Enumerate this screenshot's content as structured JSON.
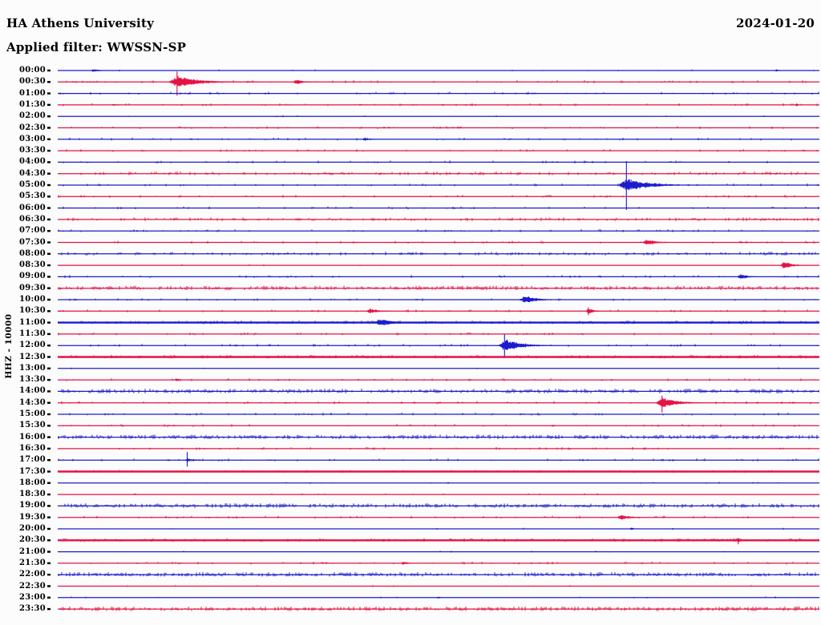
{
  "header": {
    "station_title": "HA Athens University",
    "date": "2024-01-20",
    "filter_label": "Applied filter: WWSSN-SP"
  },
  "axis": {
    "channel_label": "HHZ - 10000",
    "row_duration_min": 30,
    "time_range": "00:00 - 24:00"
  },
  "colors": {
    "trace_blue": "#1c1ccd",
    "trace_red": "#e51245",
    "tick_black": "#000000",
    "text": "#000000",
    "background": "#fcfcfc"
  },
  "chart_data": {
    "type": "helicorder",
    "description": "24-hour seismogram, 48 traces of 30 minutes each, alternating blue (on the hour) and red (on the half hour). Events listed with minute offset within trace, amplitude in px, width in px.",
    "rows": [
      {
        "label": "00:00",
        "color": "blue",
        "noise": 0,
        "events": [
          {
            "min": 1.4,
            "amp": 2.5,
            "w": 12
          },
          {
            "min": 28.3,
            "amp": 2,
            "w": 8
          }
        ]
      },
      {
        "label": "00:30",
        "color": "red",
        "noise": 1,
        "events": [
          {
            "min": 4.7,
            "amp": 8,
            "w": 36,
            "su": 13,
            "sd": 17,
            "tail": 55
          },
          {
            "min": 7.5,
            "amp": 1.5,
            "w": 16
          },
          {
            "min": 9.4,
            "amp": 3.5,
            "w": 16
          }
        ]
      },
      {
        "label": "01:00",
        "color": "blue",
        "noise": 1,
        "events": [
          {
            "min": 6.0,
            "amp": 1.5,
            "w": 8
          },
          {
            "min": 13.1,
            "amp": 1.8,
            "w": 8
          },
          {
            "min": 18.7,
            "amp": 1.5,
            "w": 14
          },
          {
            "min": 21.2,
            "amp": 1.2,
            "w": 8
          }
        ]
      },
      {
        "label": "01:30",
        "color": "red",
        "noise": 1,
        "events": [
          {
            "min": 2.2,
            "amp": 1.5,
            "w": 12
          },
          {
            "min": 11.9,
            "amp": 1.5,
            "w": 6
          },
          {
            "min": 29.1,
            "amp": 2,
            "w": 5
          }
        ]
      },
      {
        "label": "02:00",
        "color": "blue",
        "noise": 0,
        "events": []
      },
      {
        "label": "02:30",
        "color": "red",
        "noise": 1,
        "events": []
      },
      {
        "label": "03:00",
        "color": "blue",
        "noise": 1,
        "events": [
          {
            "min": 12.1,
            "amp": 2.5,
            "w": 12
          }
        ]
      },
      {
        "label": "03:30",
        "color": "red",
        "noise": 1,
        "events": []
      },
      {
        "label": "04:00",
        "color": "blue",
        "noise": 1,
        "events": []
      },
      {
        "label": "04:30",
        "color": "red",
        "noise": 2,
        "events": []
      },
      {
        "label": "05:00",
        "color": "blue",
        "noise": 1,
        "events": [
          {
            "min": 22.4,
            "amp": 10,
            "w": 34,
            "su": 30,
            "sd": 31,
            "tail": 55
          }
        ]
      },
      {
        "label": "05:30",
        "color": "red",
        "noise": 1,
        "events": []
      },
      {
        "label": "06:00",
        "color": "blue",
        "noise": 1,
        "events": []
      },
      {
        "label": "06:30",
        "color": "red",
        "noise": 2,
        "events": []
      },
      {
        "label": "07:00",
        "color": "blue",
        "noise": 1,
        "events": []
      },
      {
        "label": "07:30",
        "color": "red",
        "noise": 1,
        "events": [
          {
            "min": 23.2,
            "amp": 4,
            "w": 22
          }
        ]
      },
      {
        "label": "08:00",
        "color": "blue",
        "noise": 2,
        "events": []
      },
      {
        "label": "08:30",
        "color": "red",
        "noise": 0,
        "events": [
          {
            "min": 28.6,
            "amp": 6,
            "w": 16
          }
        ]
      },
      {
        "label": "09:00",
        "color": "blue",
        "noise": 1,
        "events": [
          {
            "min": 26.9,
            "amp": 4,
            "w": 16
          }
        ]
      },
      {
        "label": "09:30",
        "color": "red",
        "noise": 3,
        "events": []
      },
      {
        "label": "10:00",
        "color": "blue",
        "noise": 1,
        "events": [
          {
            "min": 18.4,
            "amp": 6,
            "w": 24
          }
        ]
      },
      {
        "label": "10:30",
        "color": "red",
        "noise": 1,
        "events": [
          {
            "min": 12.3,
            "amp": 3.5,
            "w": 20
          },
          {
            "min": 20.9,
            "amp": 5,
            "w": 10,
            "sd": 5
          }
        ]
      },
      {
        "label": "11:00",
        "color": "blue",
        "noise": 2,
        "bold": true,
        "events": [
          {
            "min": 12.7,
            "amp": 6,
            "w": 24
          }
        ]
      },
      {
        "label": "11:30",
        "color": "red",
        "noise": 1,
        "events": []
      },
      {
        "label": "12:00",
        "color": "blue",
        "noise": 1,
        "events": [
          {
            "min": 17.6,
            "amp": 9,
            "w": 26,
            "su": 14,
            "sd": 15,
            "tail": 40
          }
        ]
      },
      {
        "label": "12:30",
        "color": "red",
        "noise": 2,
        "bold": true,
        "events": [
          {
            "min": 19.8,
            "amp": 2,
            "w": 6
          }
        ]
      },
      {
        "label": "13:00",
        "color": "blue",
        "noise": 0,
        "events": []
      },
      {
        "label": "13:30",
        "color": "red",
        "noise": 1,
        "events": [
          {
            "min": 4.7,
            "amp": 2.5,
            "w": 5
          }
        ]
      },
      {
        "label": "14:00",
        "color": "blue",
        "noise": 3,
        "events": []
      },
      {
        "label": "14:30",
        "color": "red",
        "noise": 1,
        "events": [
          {
            "min": 23.8,
            "amp": 8,
            "w": 26,
            "su": 9,
            "sd": 12,
            "tail": 30
          }
        ]
      },
      {
        "label": "15:00",
        "color": "blue",
        "noise": 1,
        "events": []
      },
      {
        "label": "15:30",
        "color": "red",
        "noise": 1,
        "events": []
      },
      {
        "label": "16:00",
        "color": "blue",
        "noise": 3,
        "events": []
      },
      {
        "label": "16:30",
        "color": "red",
        "noise": 1,
        "events": []
      },
      {
        "label": "17:00",
        "color": "blue",
        "noise": 1,
        "events": [
          {
            "min": 5.1,
            "amp": 3,
            "w": 8,
            "su": 10,
            "sd": 8,
            "tail": 25
          },
          {
            "min": 8.3,
            "amp": 1,
            "w": 14
          }
        ]
      },
      {
        "label": "17:30",
        "color": "red",
        "noise": 1,
        "bold": true,
        "events": []
      },
      {
        "label": "18:00",
        "color": "blue",
        "noise": 0,
        "events": []
      },
      {
        "label": "18:30",
        "color": "red",
        "noise": 0,
        "events": []
      },
      {
        "label": "19:00",
        "color": "blue",
        "noise": 3,
        "events": []
      },
      {
        "label": "19:30",
        "color": "red",
        "noise": 1,
        "events": [
          {
            "min": 22.2,
            "amp": 4,
            "w": 18
          }
        ]
      },
      {
        "label": "20:00",
        "color": "blue",
        "noise": 0,
        "events": [
          {
            "min": 22.6,
            "amp": 2,
            "w": 5
          }
        ]
      },
      {
        "label": "20:30",
        "color": "red",
        "noise": 2,
        "bold": true,
        "events": [
          {
            "min": 26.8,
            "amp": 5,
            "w": 8,
            "sd": 5
          }
        ]
      },
      {
        "label": "21:00",
        "color": "blue",
        "noise": 0,
        "events": []
      },
      {
        "label": "21:30",
        "color": "red",
        "noise": 1,
        "events": [
          {
            "min": 13.6,
            "amp": 3,
            "w": 10
          }
        ]
      },
      {
        "label": "22:00",
        "color": "blue",
        "noise": 3,
        "events": []
      },
      {
        "label": "22:30",
        "color": "red",
        "noise": 0,
        "events": []
      },
      {
        "label": "23:00",
        "color": "blue",
        "noise": 0,
        "events": [
          {
            "min": 15.0,
            "amp": 1.5,
            "w": 5
          }
        ]
      },
      {
        "label": "23:30",
        "color": "red",
        "noise": 3,
        "events": []
      }
    ]
  }
}
